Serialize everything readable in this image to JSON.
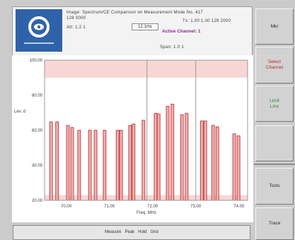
{
  "colors": {
    "logo_bg": "#2f63a9",
    "active_channel": "#8b2c8f"
  },
  "header": {
    "line1": "Image: Spectrum/CE Comparison on Measurement Mode No. 417",
    "line2_left": "128 0000",
    "line2_right": "Tx: 1.00  1.00  128 2000",
    "line3_left": "Att: 1.2  1",
    "time_box": "12.1ms",
    "active_channel": "Active Channel: 1",
    "line4": "Span: 1.0  1"
  },
  "softkeys": [
    {
      "lines": [
        "Mkr"
      ],
      "color": "#2a2a2a"
    },
    {
      "lines": [
        "Select",
        "Channel"
      ],
      "color": "#c42626"
    },
    {
      "lines": [
        "Limit",
        "Line"
      ],
      "color": "#2f8f3a"
    },
    {
      "lines": [],
      "color": "#2a2a2a"
    },
    {
      "lines": [
        "Tools"
      ],
      "color": "#2a2a2a"
    },
    {
      "lines": [
        "Trace"
      ],
      "color": "#2a2a2a"
    }
  ],
  "bottom_bar": {
    "text": "Measure   Peak   Hold   Grid"
  },
  "chart_data": {
    "type": "bar",
    "x": [
      69.65,
      69.79,
      70.04,
      70.14,
      70.3,
      70.55,
      70.68,
      70.89,
      71.19,
      71.27,
      71.48,
      71.56,
      71.79,
      72.07,
      72.14,
      72.35,
      72.46,
      72.68,
      72.79,
      73.14,
      73.22,
      73.4,
      73.5,
      73.89,
      73.99
    ],
    "values": [
      64.8,
      64.8,
      62.8,
      61.6,
      60.0,
      60.0,
      60.0,
      60.0,
      60.0,
      60.0,
      62.8,
      63.6,
      65.7,
      69.7,
      69.3,
      73.7,
      74.9,
      68.9,
      69.7,
      65.3,
      65.3,
      62.8,
      62.0,
      58.0,
      56.8
    ],
    "xlabel": "Freq. MHz",
    "ylabel": "Lev. d",
    "xlim": [
      69.5,
      74.2
    ],
    "ylim": [
      20,
      100
    ],
    "xticks": [
      70,
      71,
      72,
      73,
      74
    ],
    "xtick_labels": [
      "70.00",
      "71.00",
      "72.00",
      "73.00",
      "74.00"
    ],
    "yticks": [
      100,
      80,
      60,
      40,
      20
    ],
    "ytick_labels": [
      "100.00",
      "80.00",
      "60.00",
      "40.00",
      "20.00"
    ],
    "vlines": [
      71.87,
      73.0
    ],
    "bands": [
      {
        "from": 90,
        "to": 100
      },
      {
        "from": 20,
        "to": 23
      }
    ],
    "grid": false,
    "colors": {
      "bar": "#b82828",
      "bar_fill": "#eeb0b0",
      "band": "#f7d6d6",
      "vline": "#9a9a9a",
      "frame": "#9a9a9a"
    }
  }
}
